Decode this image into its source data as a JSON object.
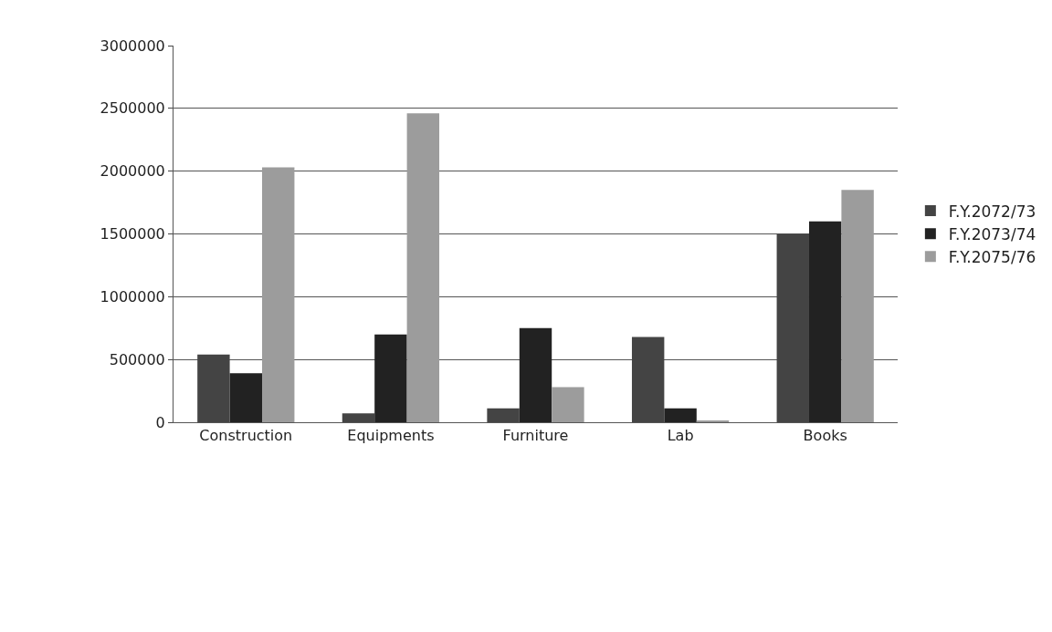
{
  "chart_data": {
    "type": "bar",
    "categories": [
      "Construction",
      "Equipments",
      "Furniture",
      "Lab",
      "Books"
    ],
    "series": [
      {
        "name": "F.Y.2072/73",
        "color": "#444444",
        "values": [
          540000,
          70000,
          110000,
          680000,
          1500000
        ]
      },
      {
        "name": "F.Y.2073/74",
        "color": "#222222",
        "values": [
          390000,
          700000,
          750000,
          110000,
          1600000
        ]
      },
      {
        "name": "F.Y.2075/76",
        "color": "#9c9c9c",
        "values": [
          2030000,
          2460000,
          280000,
          10000,
          1850000
        ]
      }
    ],
    "ylim": [
      0,
      3000000
    ],
    "yticks": [
      0,
      500000,
      1000000,
      1500000,
      2000000,
      2500000,
      3000000
    ],
    "grid": "y",
    "legend": "right"
  }
}
